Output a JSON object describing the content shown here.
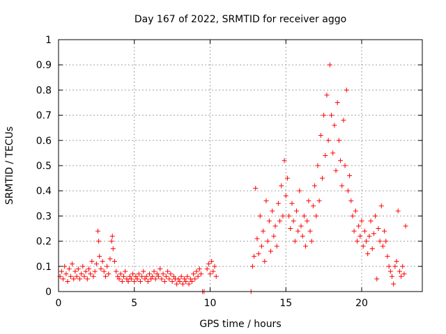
{
  "chart_data": {
    "type": "scatter",
    "title": "Day 167 of 2022, SRMTID for receiver aggo",
    "xlabel": "GPS time / hours",
    "ylabel": "SRMTID / TECUs",
    "xlim": [
      0,
      24
    ],
    "ylim": [
      0,
      1
    ],
    "x_ticks": [
      0,
      5,
      10,
      15,
      20
    ],
    "x_tick_labels": [
      "0",
      "5",
      "10",
      "15",
      "20"
    ],
    "y_ticks": [
      0,
      0.1,
      0.2,
      0.3,
      0.4,
      0.5,
      0.6,
      0.7,
      0.8,
      0.9,
      1
    ],
    "y_tick_labels": [
      "0",
      "0.1",
      "0.2",
      "0.3",
      "0.4",
      "0.5",
      "0.6",
      "0.7",
      "0.8",
      "0.9",
      "1"
    ],
    "grid": true,
    "marker": "+",
    "marker_color": "#ff0000",
    "series": [
      {
        "name": "SRMTID",
        "points": [
          [
            0.1,
            0.06
          ],
          [
            0.2,
            0.08
          ],
          [
            0.3,
            0.05
          ],
          [
            0.4,
            0.1
          ],
          [
            0.5,
            0.07
          ],
          [
            0.6,
            0.04
          ],
          [
            0.7,
            0.09
          ],
          [
            0.8,
            0.06
          ],
          [
            0.9,
            0.11
          ],
          [
            1.0,
            0.05
          ],
          [
            1.1,
            0.08
          ],
          [
            1.2,
            0.06
          ],
          [
            1.3,
            0.09
          ],
          [
            1.4,
            0.05
          ],
          [
            1.5,
            0.07
          ],
          [
            1.6,
            0.1
          ],
          [
            1.7,
            0.06
          ],
          [
            1.8,
            0.08
          ],
          [
            1.9,
            0.05
          ],
          [
            2.0,
            0.09
          ],
          [
            2.1,
            0.07
          ],
          [
            2.2,
            0.12
          ],
          [
            2.3,
            0.06
          ],
          [
            2.4,
            0.08
          ],
          [
            2.5,
            0.11
          ],
          [
            2.6,
            0.24
          ],
          [
            2.65,
            0.2
          ],
          [
            2.7,
            0.14
          ],
          [
            2.8,
            0.09
          ],
          [
            2.9,
            0.12
          ],
          [
            3.0,
            0.08
          ],
          [
            3.1,
            0.06
          ],
          [
            3.2,
            0.1
          ],
          [
            3.3,
            0.07
          ],
          [
            3.4,
            0.13
          ],
          [
            3.5,
            0.2
          ],
          [
            3.55,
            0.22
          ],
          [
            3.6,
            0.17
          ],
          [
            3.7,
            0.12
          ],
          [
            3.8,
            0.08
          ],
          [
            3.9,
            0.06
          ],
          [
            4.0,
            0.05
          ],
          [
            4.1,
            0.07
          ],
          [
            4.2,
            0.04
          ],
          [
            4.3,
            0.06
          ],
          [
            4.4,
            0.08
          ],
          [
            4.5,
            0.05
          ],
          [
            4.6,
            0.04
          ],
          [
            4.7,
            0.06
          ],
          [
            4.8,
            0.05
          ],
          [
            4.9,
            0.07
          ],
          [
            5.0,
            0.04
          ],
          [
            5.1,
            0.06
          ],
          [
            5.2,
            0.05
          ],
          [
            5.3,
            0.07
          ],
          [
            5.4,
            0.04
          ],
          [
            5.5,
            0.06
          ],
          [
            5.6,
            0.08
          ],
          [
            5.7,
            0.05
          ],
          [
            5.8,
            0.06
          ],
          [
            5.9,
            0.04
          ],
          [
            6.0,
            0.07
          ],
          [
            6.1,
            0.05
          ],
          [
            6.2,
            0.06
          ],
          [
            6.3,
            0.08
          ],
          [
            6.4,
            0.05
          ],
          [
            6.5,
            0.07
          ],
          [
            6.6,
            0.06
          ],
          [
            6.7,
            0.09
          ],
          [
            6.8,
            0.05
          ],
          [
            6.9,
            0.07
          ],
          [
            7.0,
            0.04
          ],
          [
            7.1,
            0.06
          ],
          [
            7.2,
            0.08
          ],
          [
            7.3,
            0.05
          ],
          [
            7.4,
            0.07
          ],
          [
            7.5,
            0.04
          ],
          [
            7.6,
            0.06
          ],
          [
            7.7,
            0.05
          ],
          [
            7.8,
            0.03
          ],
          [
            7.9,
            0.05
          ],
          [
            8.0,
            0.04
          ],
          [
            8.1,
            0.06
          ],
          [
            8.2,
            0.03
          ],
          [
            8.3,
            0.05
          ],
          [
            8.4,
            0.04
          ],
          [
            8.5,
            0.06
          ],
          [
            8.6,
            0.03
          ],
          [
            8.7,
            0.05
          ],
          [
            8.8,
            0.04
          ],
          [
            8.9,
            0.07
          ],
          [
            9.0,
            0.05
          ],
          [
            9.1,
            0.08
          ],
          [
            9.2,
            0.06
          ],
          [
            9.3,
            0.09
          ],
          [
            9.4,
            0.07
          ],
          [
            9.5,
            0.0
          ],
          [
            9.6,
            0.0
          ],
          [
            9.8,
            0.09
          ],
          [
            9.9,
            0.11
          ],
          [
            10.0,
            0.07
          ],
          [
            10.1,
            0.12
          ],
          [
            10.2,
            0.08
          ],
          [
            10.3,
            0.1
          ],
          [
            10.4,
            0.06
          ],
          [
            12.7,
            0.0
          ],
          [
            12.8,
            0.1
          ],
          [
            12.9,
            0.14
          ],
          [
            13.0,
            0.41
          ],
          [
            13.1,
            0.21
          ],
          [
            13.2,
            0.15
          ],
          [
            13.3,
            0.3
          ],
          [
            13.4,
            0.18
          ],
          [
            13.5,
            0.24
          ],
          [
            13.6,
            0.12
          ],
          [
            13.7,
            0.36
          ],
          [
            13.8,
            0.2
          ],
          [
            13.9,
            0.28
          ],
          [
            14.0,
            0.16
          ],
          [
            14.1,
            0.32
          ],
          [
            14.2,
            0.22
          ],
          [
            14.3,
            0.26
          ],
          [
            14.4,
            0.18
          ],
          [
            14.5,
            0.35
          ],
          [
            14.6,
            0.28
          ],
          [
            14.7,
            0.42
          ],
          [
            14.8,
            0.3
          ],
          [
            14.9,
            0.52
          ],
          [
            15.0,
            0.38
          ],
          [
            15.1,
            0.45
          ],
          [
            15.2,
            0.3
          ],
          [
            15.3,
            0.25
          ],
          [
            15.4,
            0.35
          ],
          [
            15.5,
            0.28
          ],
          [
            15.6,
            0.2
          ],
          [
            15.7,
            0.32
          ],
          [
            15.8,
            0.24
          ],
          [
            15.9,
            0.4
          ],
          [
            16.0,
            0.26
          ],
          [
            16.1,
            0.22
          ],
          [
            16.2,
            0.3
          ],
          [
            16.3,
            0.18
          ],
          [
            16.4,
            0.28
          ],
          [
            16.5,
            0.36
          ],
          [
            16.6,
            0.24
          ],
          [
            16.7,
            0.2
          ],
          [
            16.8,
            0.34
          ],
          [
            16.9,
            0.42
          ],
          [
            17.0,
            0.3
          ],
          [
            17.1,
            0.5
          ],
          [
            17.2,
            0.36
          ],
          [
            17.3,
            0.62
          ],
          [
            17.4,
            0.45
          ],
          [
            17.5,
            0.7
          ],
          [
            17.6,
            0.54
          ],
          [
            17.7,
            0.78
          ],
          [
            17.8,
            0.6
          ],
          [
            17.9,
            0.9
          ],
          [
            18.0,
            0.7
          ],
          [
            18.1,
            0.55
          ],
          [
            18.2,
            0.66
          ],
          [
            18.3,
            0.48
          ],
          [
            18.4,
            0.75
          ],
          [
            18.5,
            0.6
          ],
          [
            18.6,
            0.52
          ],
          [
            18.7,
            0.42
          ],
          [
            18.8,
            0.68
          ],
          [
            18.9,
            0.5
          ],
          [
            19.0,
            0.8
          ],
          [
            19.1,
            0.4
          ],
          [
            19.2,
            0.46
          ],
          [
            19.3,
            0.36
          ],
          [
            19.4,
            0.3
          ],
          [
            19.5,
            0.24
          ],
          [
            19.6,
            0.32
          ],
          [
            19.7,
            0.2
          ],
          [
            19.8,
            0.26
          ],
          [
            19.9,
            0.22
          ],
          [
            20.0,
            0.28
          ],
          [
            20.1,
            0.18
          ],
          [
            20.2,
            0.24
          ],
          [
            20.3,
            0.2
          ],
          [
            20.4,
            0.15
          ],
          [
            20.5,
            0.22
          ],
          [
            20.6,
            0.28
          ],
          [
            20.7,
            0.17
          ],
          [
            20.8,
            0.23
          ],
          [
            20.9,
            0.3
          ],
          [
            21.0,
            0.05
          ],
          [
            21.1,
            0.25
          ],
          [
            21.2,
            0.2
          ],
          [
            21.3,
            0.34
          ],
          [
            21.4,
            0.18
          ],
          [
            21.5,
            0.24
          ],
          [
            21.6,
            0.2
          ],
          [
            21.7,
            0.14
          ],
          [
            21.8,
            0.1
          ],
          [
            21.9,
            0.08
          ],
          [
            22.0,
            0.06
          ],
          [
            22.1,
            0.03
          ],
          [
            22.2,
            0.1
          ],
          [
            22.3,
            0.12
          ],
          [
            22.4,
            0.32
          ],
          [
            22.5,
            0.08
          ],
          [
            22.6,
            0.06
          ],
          [
            22.7,
            0.1
          ],
          [
            22.8,
            0.07
          ],
          [
            22.9,
            0.26
          ]
        ]
      }
    ]
  }
}
